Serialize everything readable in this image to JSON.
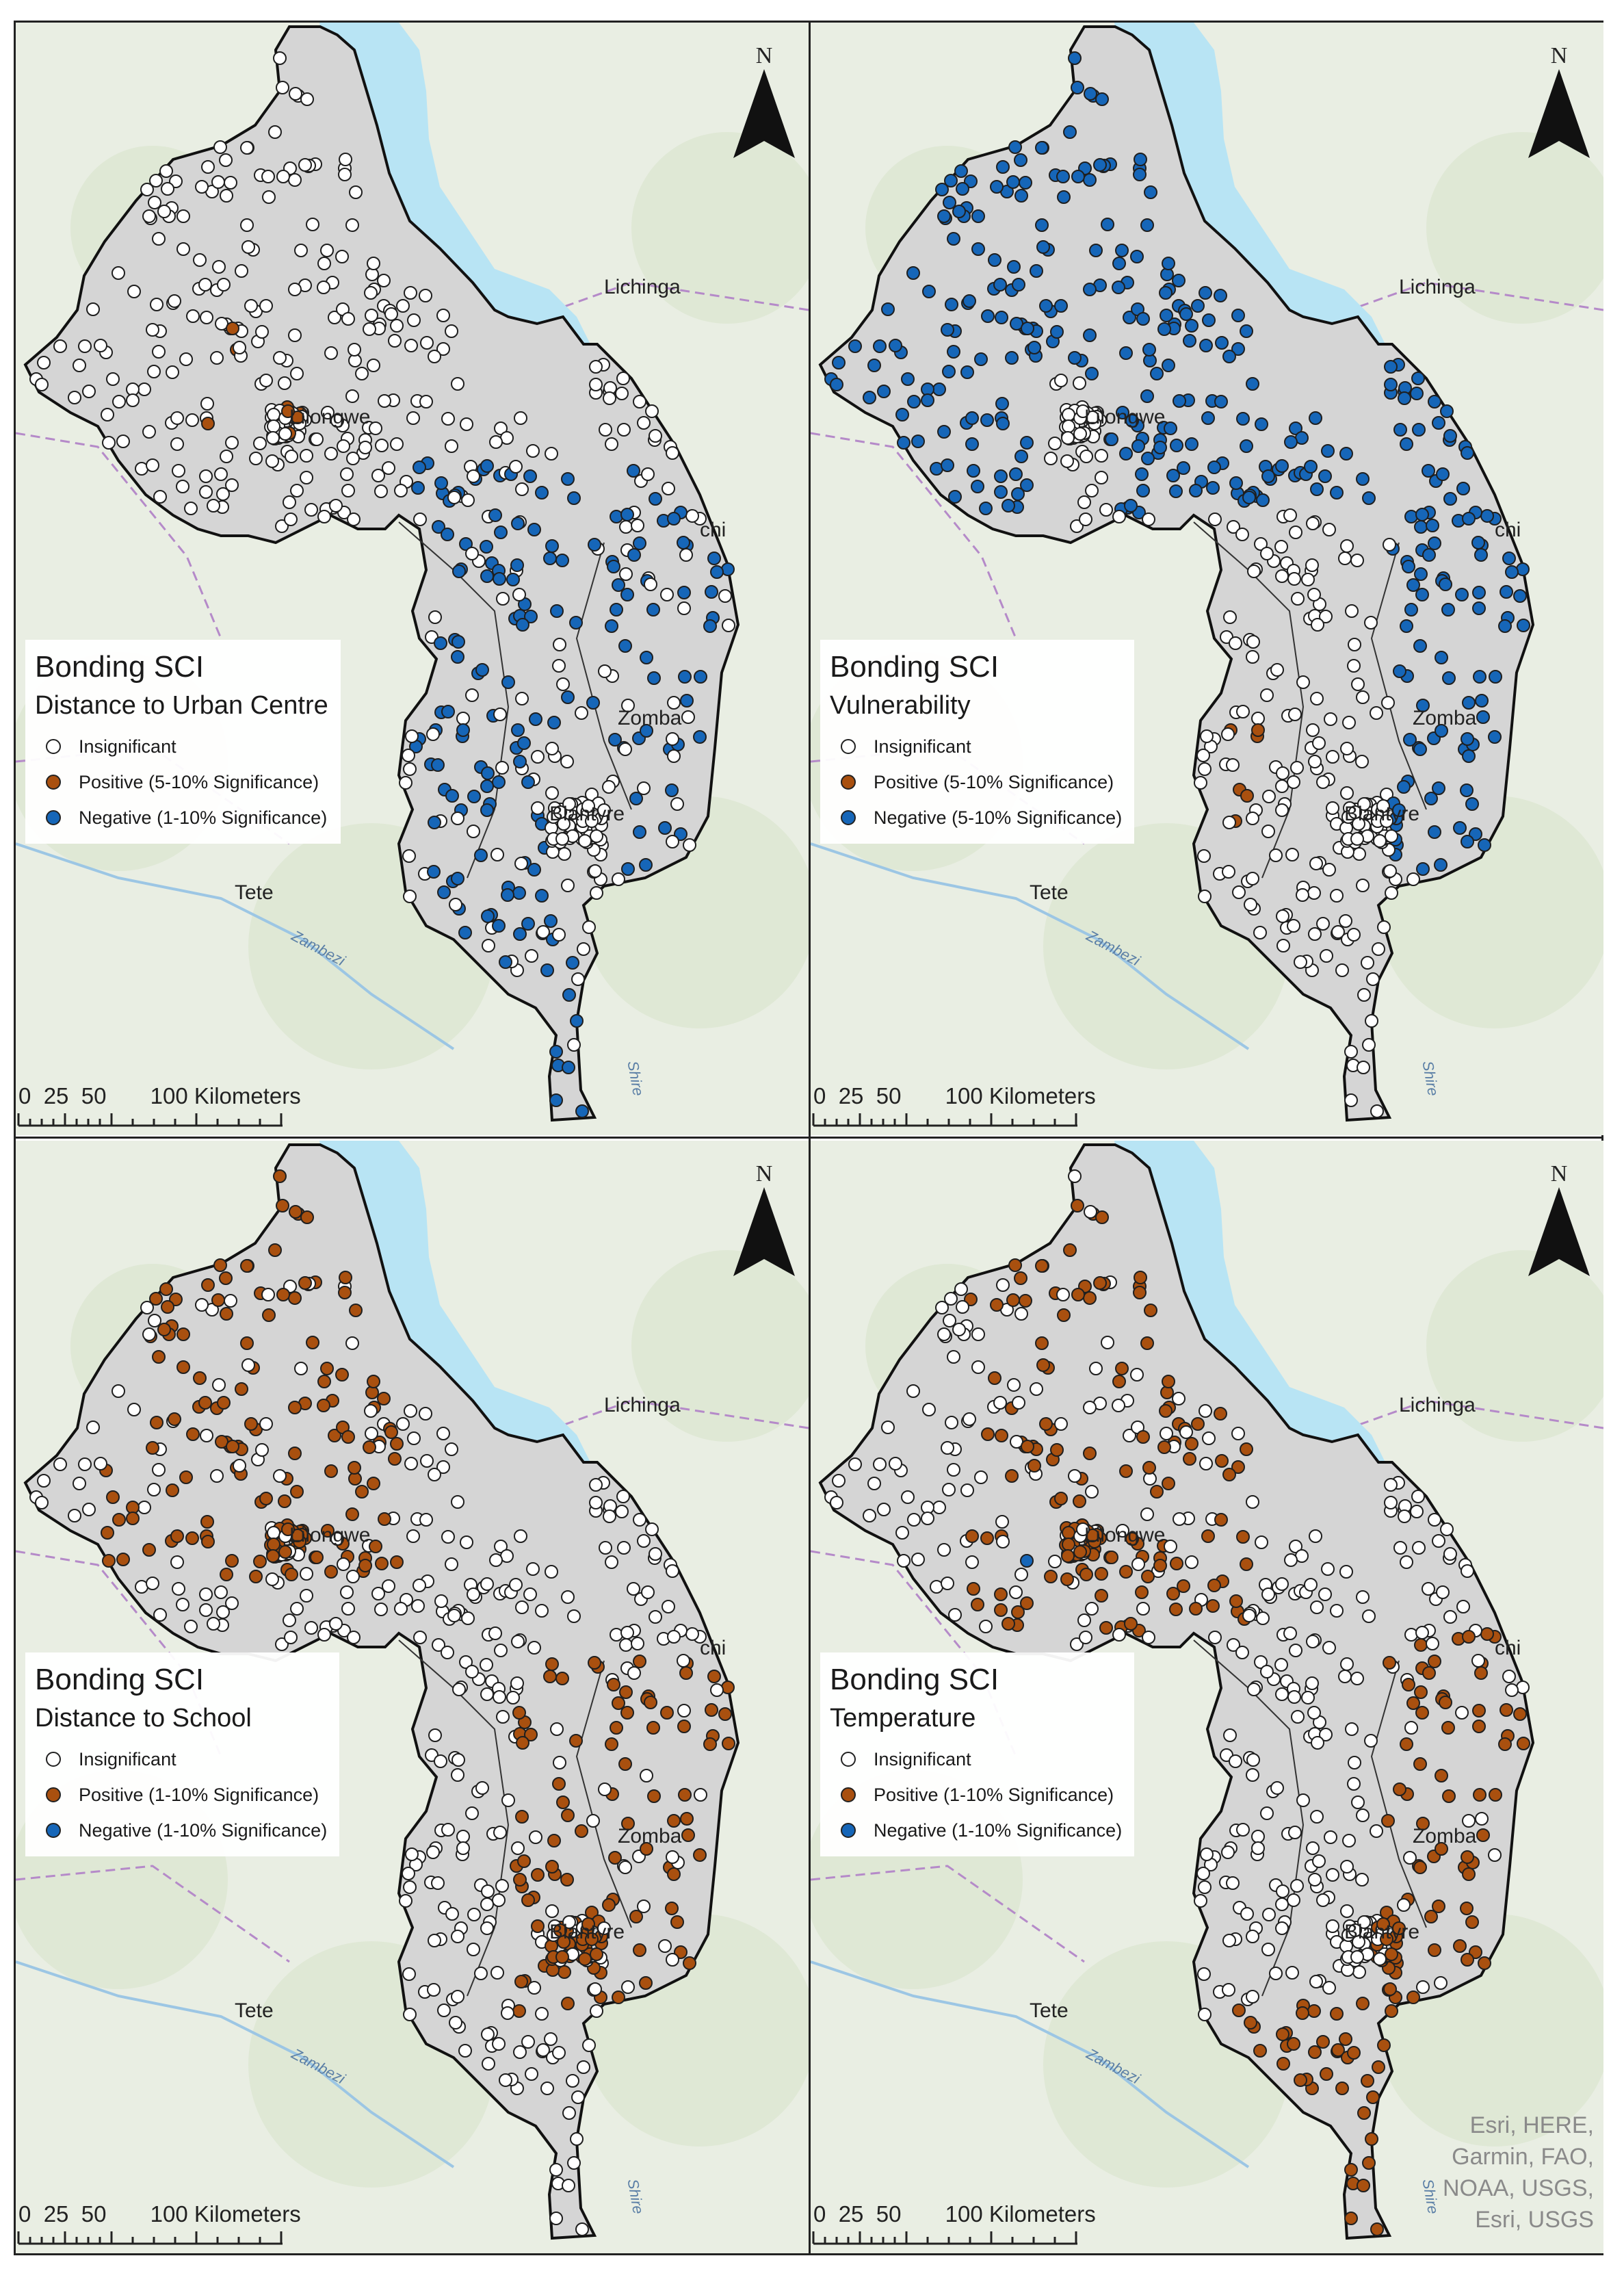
{
  "colors": {
    "insignificant": "#ffffff",
    "positive": "#a9500f",
    "negative": "#1666b8",
    "lake": "#b8e4f4",
    "country": "#d5d5d5",
    "background": "#e9eee3"
  },
  "common": {
    "scale_label": "0  25  50       100 Kilometers",
    "north_label": "N",
    "places": {
      "lichinga": "Lichinga",
      "lilongwe": "Lilongwe",
      "zomba": "Zomba",
      "blantyre": "Blantyre",
      "tete": "Tete",
      "chi": "chi"
    },
    "rivers": {
      "zambezi": "Zambezi",
      "shire": "Shire"
    }
  },
  "panels": [
    {
      "title": "Bonding SCI",
      "subtitle": "Distance to Urban Centre",
      "legend": [
        {
          "label": "Insignificant",
          "class": "insignificant"
        },
        {
          "label": "Positive (5-10% Significance)",
          "class": "positive"
        },
        {
          "label": "Negative (1-10% Significance)",
          "class": "negative"
        }
      ]
    },
    {
      "title": "Bonding SCI",
      "subtitle": "Vulnerability",
      "legend": [
        {
          "label": "Insignificant",
          "class": "insignificant"
        },
        {
          "label": "Positive (5-10% Significance)",
          "class": "positive"
        },
        {
          "label": "Negative (5-10% Significance)",
          "class": "negative"
        }
      ]
    },
    {
      "title": "Bonding SCI",
      "subtitle": "Distance to School",
      "legend": [
        {
          "label": "Insignificant",
          "class": "insignificant"
        },
        {
          "label": "Positive (1-10% Significance)",
          "class": "positive"
        },
        {
          "label": "Negative (1-10% Significance)",
          "class": "negative"
        }
      ]
    },
    {
      "title": "Bonding SCI",
      "subtitle": "Temperature",
      "legend": [
        {
          "label": "Insignificant",
          "class": "insignificant"
        },
        {
          "label": "Positive (1-10% Significance)",
          "class": "positive"
        },
        {
          "label": "Negative (1-10% Significance)",
          "class": "negative"
        }
      ]
    }
  ],
  "attribution": [
    "Esri, HERE,",
    "Garmin, FAO,",
    "NOAA, USGS,",
    "Esri, USGS"
  ]
}
